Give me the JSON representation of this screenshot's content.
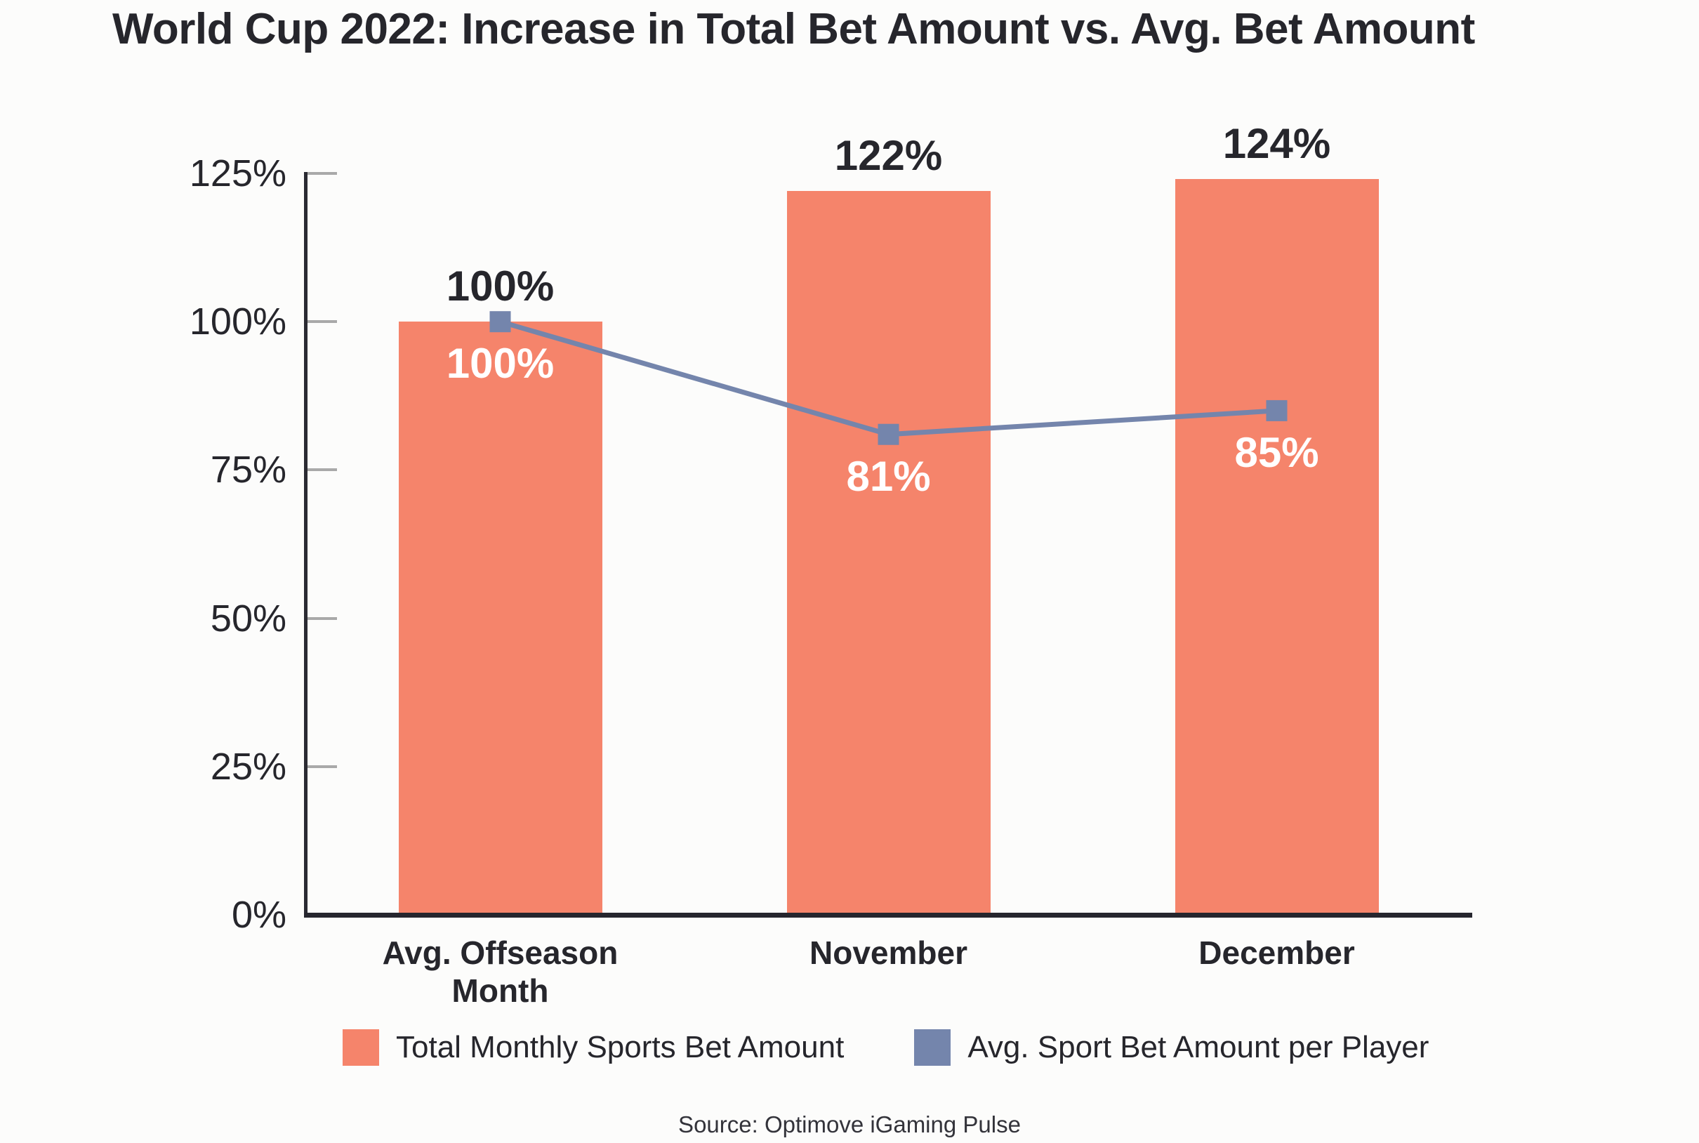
{
  "page": {
    "title": "World Cup 2022: Increase in Total Bet Amount vs. Avg. Bet Amount",
    "source": "Source: Optimove iGaming Pulse"
  },
  "colors": {
    "background": "#FCFCFB",
    "bar": "#F5846B",
    "line": "#7485AC",
    "axis": "#2A2A32",
    "tick": "#A9A9A9",
    "text": "#26262C",
    "label_on_bar": "#FFFFFF"
  },
  "legend": [
    {
      "label": "Total Monthly Sports Bet Amount",
      "swatch_color": "#F5846B",
      "series_type": "bar"
    },
    {
      "label": "Avg. Sport Bet Amount per Player",
      "swatch_color": "#7485AC",
      "series_type": "line"
    }
  ],
  "chart_data": {
    "type": "bar",
    "title": "World Cup 2022: Increase in Total Bet Amount vs. Avg. Bet Amount",
    "categories": [
      "Avg. Offseason Month",
      "November",
      "December"
    ],
    "series": [
      {
        "name": "Total Monthly Sports Bet Amount",
        "type": "bar",
        "color": "#F5846B",
        "values": [
          100,
          122,
          124
        ],
        "labels": [
          "100%",
          "122%",
          "124%"
        ],
        "label_position": "above-bar"
      },
      {
        "name": "Avg. Sport Bet Amount per Player",
        "type": "line",
        "color": "#7485AC",
        "marker": "square",
        "values": [
          100,
          81,
          85
        ],
        "labels": [
          "100%",
          "81%",
          "85%"
        ],
        "label_position": "below-marker",
        "label_color": "#FFFFFF"
      }
    ],
    "xlabel": "",
    "ylabel": "",
    "ylim": [
      0,
      125
    ],
    "yticks": [
      {
        "value": 0,
        "label": "0%"
      },
      {
        "value": 25,
        "label": "25%"
      },
      {
        "value": 50,
        "label": "50%"
      },
      {
        "value": 75,
        "label": "75%"
      },
      {
        "value": 100,
        "label": "100%"
      },
      {
        "value": 125,
        "label": "125%"
      }
    ],
    "grid": "off",
    "legend_position": "bottom",
    "source": "Source: Optimove iGaming Pulse"
  }
}
